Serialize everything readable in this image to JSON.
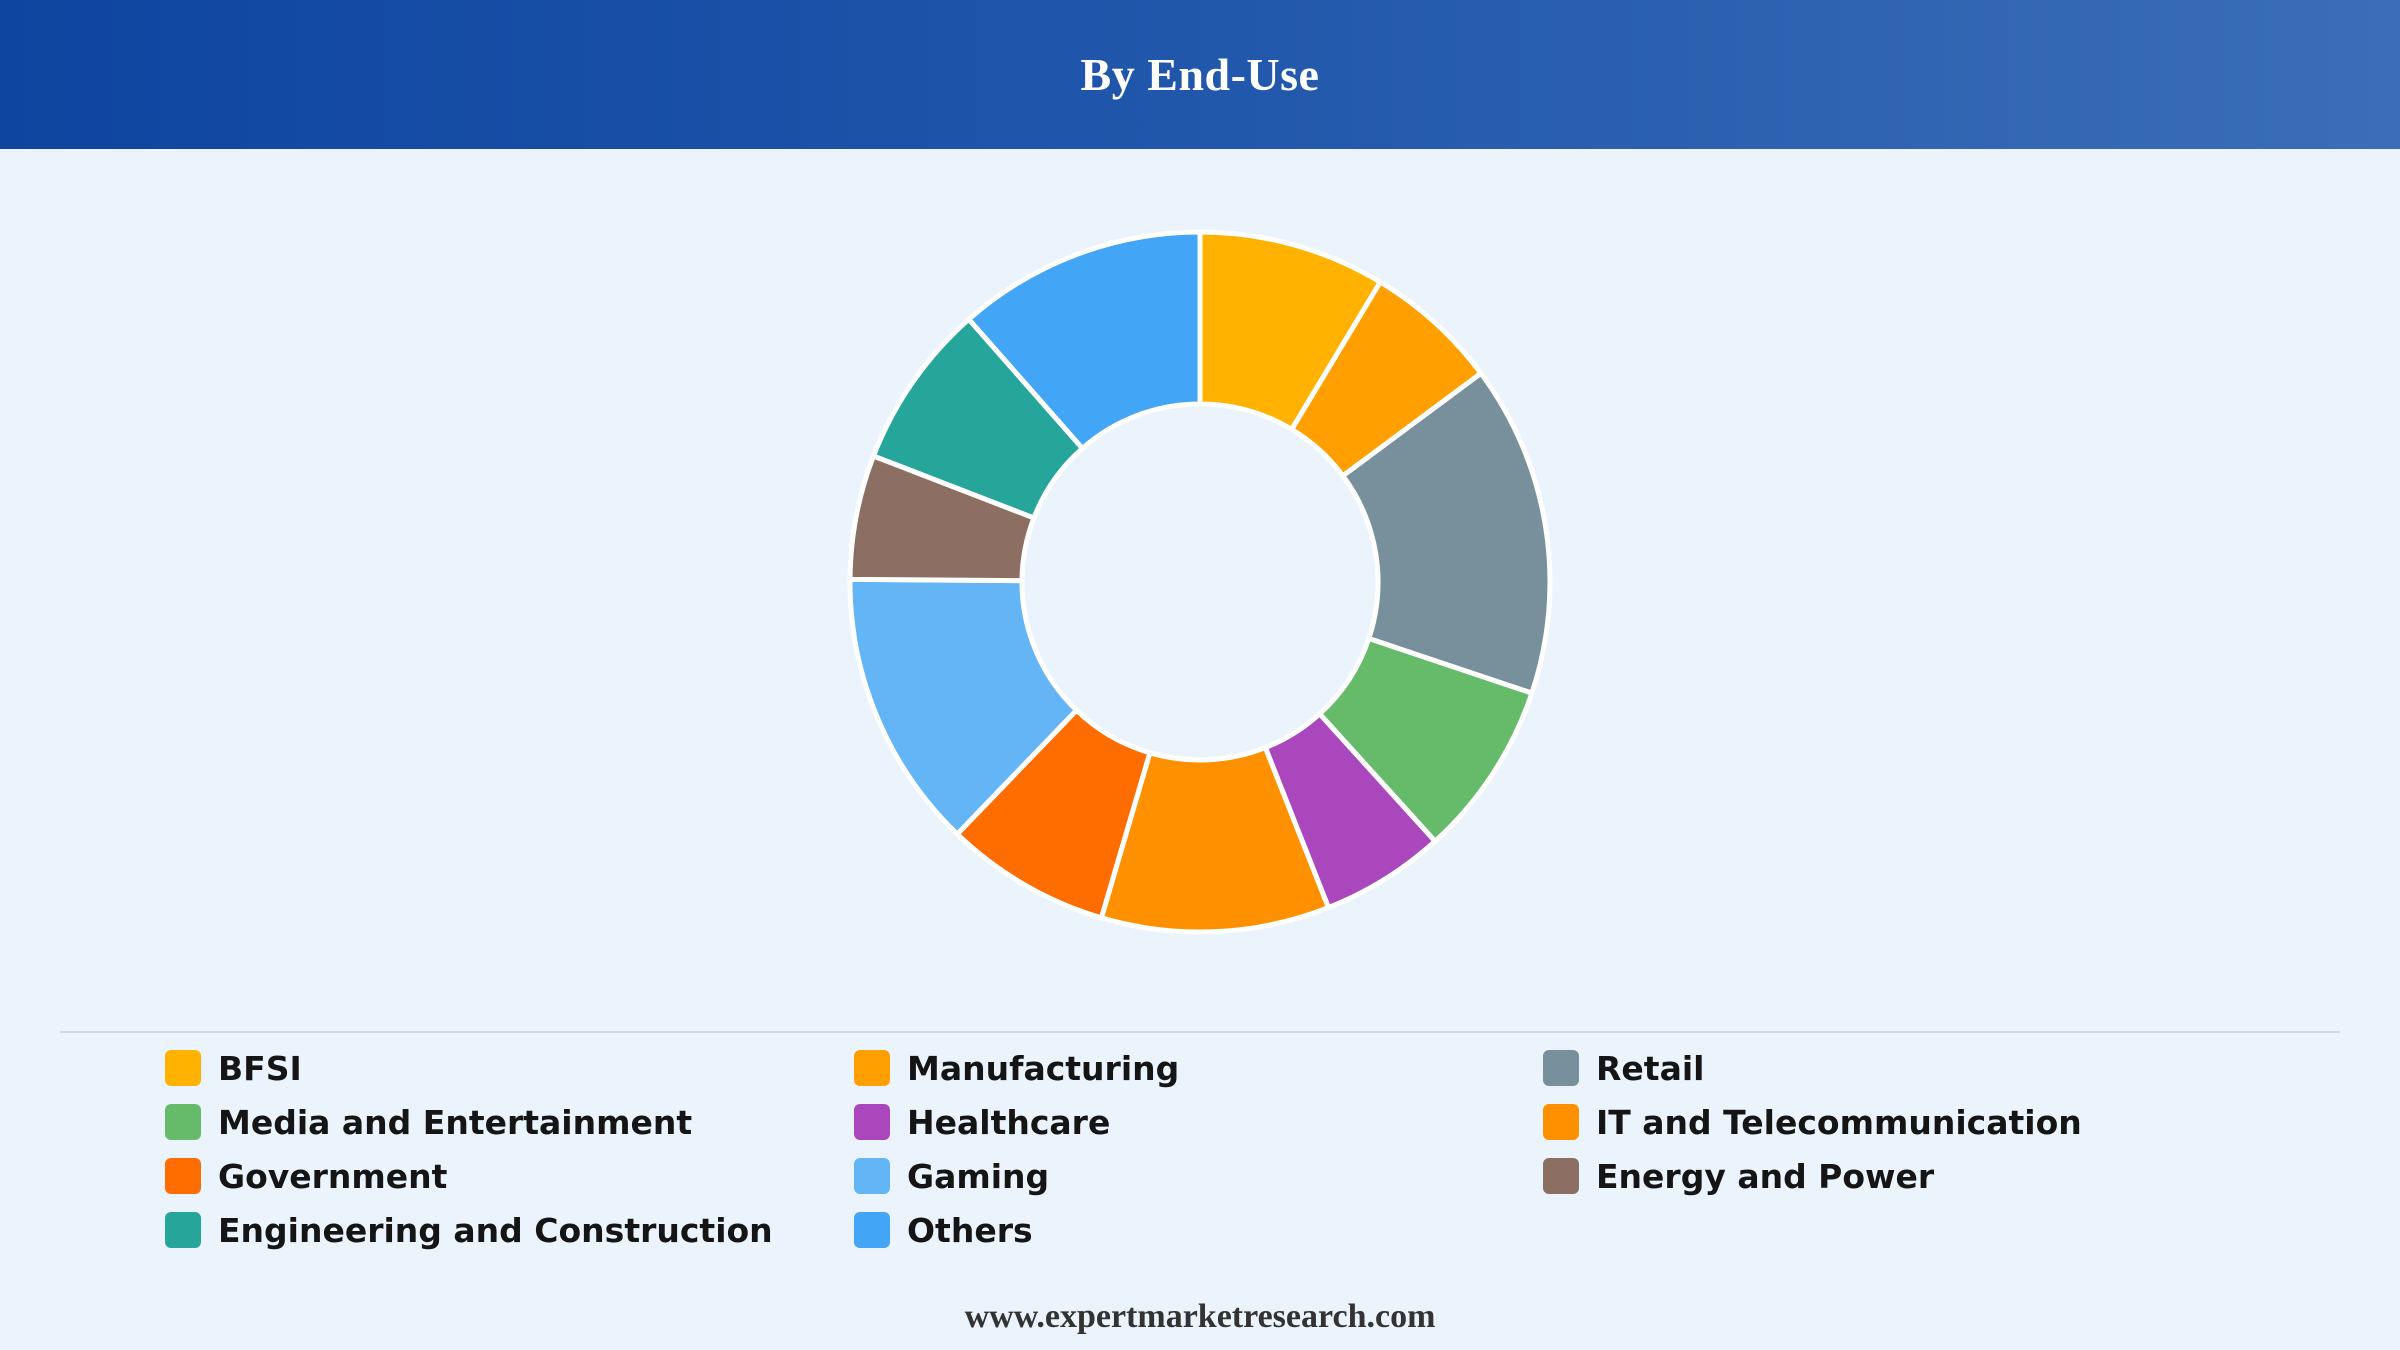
{
  "header": {
    "title": "By End-Use"
  },
  "footer": {
    "url": "www.expertmarketresearch.com"
  },
  "chart_data": {
    "type": "pie",
    "variant": "donut",
    "title": "By End-Use",
    "legend_position": "bottom",
    "categories": [
      "BFSI",
      "Manufacturing",
      "Retail",
      "Media and Entertainment",
      "Healthcare",
      "IT and Telecommunication",
      "Government",
      "Gaming",
      "Energy and Power",
      "Engineering and Construction",
      "Others"
    ],
    "values": [
      9,
      6.5,
      16,
      8.5,
      6,
      11,
      8,
      13.5,
      6,
      8,
      12
    ],
    "colors": [
      "#ffb300",
      "#ffa000",
      "#78909c",
      "#66bb6a",
      "#ab47bc",
      "#ff9100",
      "#ff6d00",
      "#64b5f6",
      "#8d6e63",
      "#26a69a",
      "#42a5f5"
    ]
  }
}
